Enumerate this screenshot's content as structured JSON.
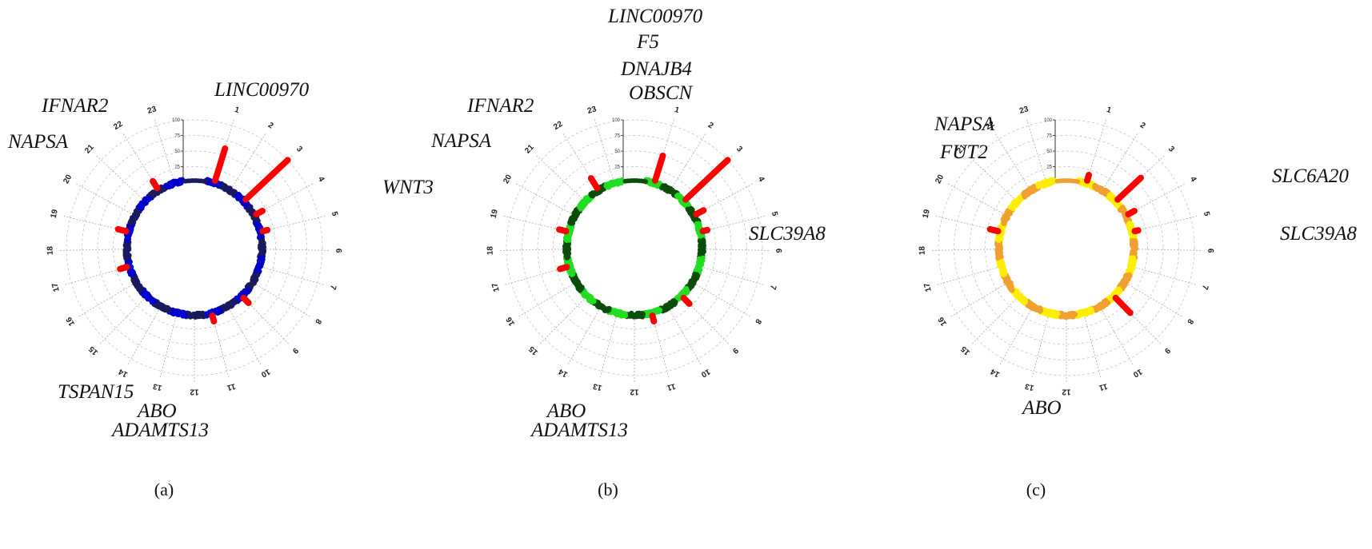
{
  "chart_data": [
    {
      "type": "scatter",
      "panel_label": "(a)",
      "center": "blue",
      "chromosomes": [
        "1",
        "2",
        "3",
        "4",
        "5",
        "6",
        "7",
        "8",
        "9",
        "10",
        "11",
        "12",
        "13",
        "14",
        "15",
        "16",
        "17",
        "18",
        "19",
        "20",
        "21",
        "22",
        "23"
      ],
      "radial_ticks": [
        "0",
        "25",
        "50",
        "75",
        "100"
      ],
      "colors": {
        "ring_a": "#0000cc",
        "ring_b": "#1a1a5e",
        "hit": "#ff0000"
      },
      "peaks": [
        {
          "chr": "1",
          "value": 58
        },
        {
          "chr": "3",
          "value": 100
        },
        {
          "chr": "4",
          "value": 12
        },
        {
          "chr": "5",
          "value": 8
        },
        {
          "chr": "9",
          "value": 12
        },
        {
          "chr": "11",
          "value": 10
        },
        {
          "chr": "17",
          "value": 12
        },
        {
          "chr": "19",
          "value": 14
        },
        {
          "chr": "22",
          "value": 14
        }
      ],
      "gene_labels": [
        "LINC00970",
        "IFNAR2",
        "NAPSA",
        "TSPAN15",
        "ABO",
        "ADAMTS13"
      ]
    },
    {
      "type": "scatter",
      "panel_label": "(b)",
      "center": "green",
      "chromosomes": [
        "1",
        "2",
        "3",
        "4",
        "5",
        "6",
        "7",
        "8",
        "9",
        "10",
        "11",
        "12",
        "13",
        "14",
        "15",
        "16",
        "17",
        "18",
        "19",
        "20",
        "21",
        "22",
        "23"
      ],
      "radial_ticks": [
        "0",
        "25",
        "50",
        "75",
        "100"
      ],
      "colors": {
        "ring_a": "#22dd22",
        "ring_b": "#0b4d0b",
        "hit": "#ff0000"
      },
      "peaks": [
        {
          "chr": "1",
          "value": 45
        },
        {
          "chr": "3",
          "value": 100
        },
        {
          "chr": "4",
          "value": 14
        },
        {
          "chr": "5",
          "value": 8
        },
        {
          "chr": "9",
          "value": 14
        },
        {
          "chr": "11",
          "value": 10
        },
        {
          "chr": "17",
          "value": 12
        },
        {
          "chr": "19",
          "value": 12
        },
        {
          "chr": "22",
          "value": 20
        }
      ],
      "gene_labels": [
        "LINC00970",
        "F5",
        "DNAJB4",
        "OBSCN",
        "IFNAR2",
        "NAPSA",
        "WNT3",
        "SLC39A8",
        "ABO",
        "ADAMTS13"
      ]
    },
    {
      "type": "scatter",
      "panel_label": "(c)",
      "center": "yellow",
      "chromosomes": [
        "1",
        "2",
        "3",
        "4",
        "5",
        "6",
        "7",
        "8",
        "9",
        "10",
        "11",
        "12",
        "13",
        "14",
        "15",
        "16",
        "17",
        "18",
        "19",
        "20",
        "21",
        "22",
        "23"
      ],
      "radial_ticks": [
        "0",
        "25",
        "50",
        "75",
        "100"
      ],
      "colors": {
        "ring_a": "#ffee00",
        "ring_b": "#f0a030",
        "hit": "#ff0000"
      },
      "peaks": [
        {
          "chr": "1",
          "value": 10
        },
        {
          "chr": "3",
          "value": 55
        },
        {
          "chr": "4",
          "value": 12
        },
        {
          "chr": "5",
          "value": 6
        },
        {
          "chr": "9",
          "value": 36
        },
        {
          "chr": "19",
          "value": 14
        }
      ],
      "gene_labels": [
        "NAPSA",
        "FUT2",
        "SLC6A20",
        "SLC39A8",
        "ABO"
      ]
    }
  ]
}
